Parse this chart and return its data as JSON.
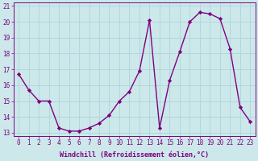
{
  "x": [
    0,
    1,
    2,
    3,
    4,
    5,
    6,
    7,
    8,
    9,
    10,
    11,
    12,
    13,
    14,
    15,
    16,
    17,
    18,
    19,
    20,
    21,
    22,
    23
  ],
  "y": [
    16.7,
    15.7,
    15.0,
    15.0,
    13.3,
    13.1,
    13.1,
    13.3,
    13.6,
    14.1,
    15.0,
    15.6,
    16.9,
    20.1,
    13.3,
    16.3,
    18.1,
    20.0,
    20.6,
    20.5,
    20.2,
    18.3,
    14.6,
    13.7
  ],
  "line_color": "#800080",
  "marker": "D",
  "marker_size": 2.2,
  "bg_color": "#cce8ea",
  "grid_color": "#b0d8dc",
  "xlabel": "Windchill (Refroidissement éolien,°C)",
  "xlim_min": -0.5,
  "xlim_max": 23.5,
  "ylim_min": 12.8,
  "ylim_max": 21.2,
  "yticks": [
    13,
    14,
    15,
    16,
    17,
    18,
    19,
    20,
    21
  ],
  "xticks": [
    0,
    1,
    2,
    3,
    4,
    5,
    6,
    7,
    8,
    9,
    10,
    11,
    12,
    13,
    14,
    15,
    16,
    17,
    18,
    19,
    20,
    21,
    22,
    23
  ],
  "tick_fontsize": 5.5,
  "xlabel_fontsize": 6.0,
  "linewidth": 1.0
}
